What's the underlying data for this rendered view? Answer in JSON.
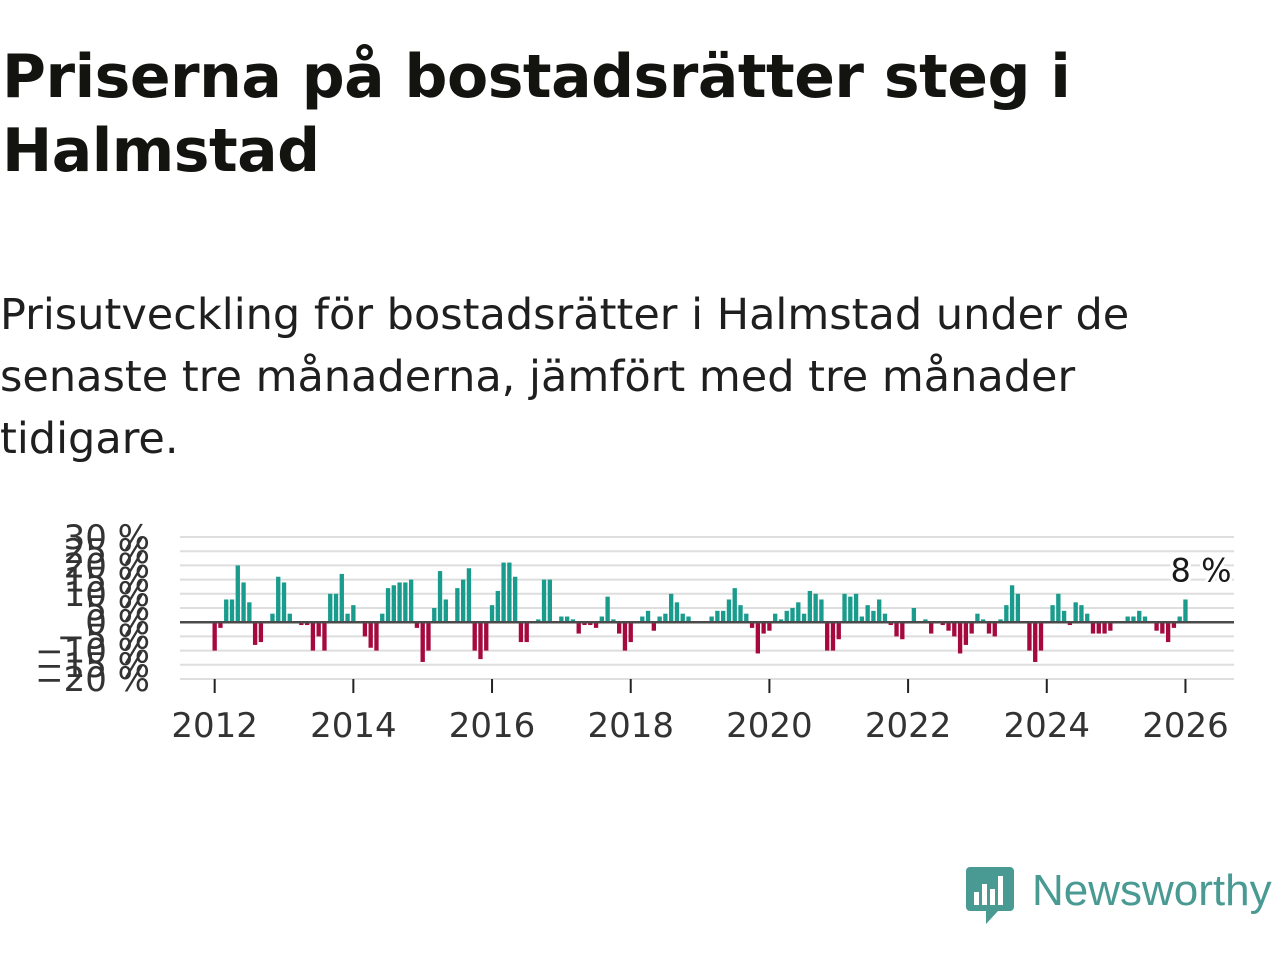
{
  "title": "Priserna på bostadsrätter steg i Halmstad",
  "subtitle": "Prisutveckling för bostadsrätter i Halmstad under de senaste tre månaderna, jämfört med tre månader tidigare.",
  "brand": {
    "name": "Newsworthy",
    "color": "#4a9a94",
    "icon": "bar-chart-speech-bubble-icon"
  },
  "colors": {
    "positive": "#199c8d",
    "negative": "#a5093d",
    "grid": "#dedede",
    "zero_line": "#4a4a4a",
    "text": "#333333"
  },
  "chart_data": {
    "type": "bar",
    "title": "Priserna på bostadsrätter steg i Halmstad",
    "xlabel": "",
    "ylabel": "",
    "ylim": [
      -20,
      30
    ],
    "y_ticks": [
      30,
      25,
      20,
      15,
      10,
      5,
      0,
      -5,
      -10,
      -15,
      -20
    ],
    "y_tick_labels": [
      "30 %",
      "25 %",
      "20 %",
      "15 %",
      "10 %",
      "5 %",
      "0 %",
      "−5 %",
      "−10 %",
      "−15 %",
      "−20 %"
    ],
    "x_range": [
      2011.5,
      2026.7
    ],
    "x_ticks": [
      2012,
      2014,
      2016,
      2018,
      2020,
      2022,
      2024,
      2026
    ],
    "x_tick_labels": [
      "2012",
      "2014",
      "2016",
      "2018",
      "2020",
      "2022",
      "2024",
      "2026"
    ],
    "start": "2012-01",
    "frequency": "monthly",
    "values": [
      -10,
      -2,
      8,
      8,
      20,
      14,
      7,
      -8,
      -7,
      0,
      3,
      16,
      14,
      3,
      0,
      -1,
      -1,
      -10,
      -5,
      -10,
      10,
      10,
      17,
      3,
      6,
      0,
      -5,
      -9,
      -10,
      3,
      12,
      13,
      14,
      14,
      15,
      -2,
      -14,
      -10,
      5,
      18,
      8,
      0,
      12,
      15,
      19,
      -10,
      -13,
      -10,
      6,
      11,
      21,
      21,
      16,
      -7,
      -7,
      0,
      1,
      15,
      15,
      0,
      2,
      2,
      1,
      -4,
      -1,
      -1,
      -2,
      2,
      9,
      1,
      -4,
      -10,
      -7,
      0,
      2,
      4,
      -3,
      2,
      3,
      10,
      7,
      3,
      2,
      0,
      0,
      0,
      2,
      4,
      4,
      8,
      12,
      6,
      3,
      -2,
      -11,
      -4,
      -3,
      3,
      1,
      4,
      5,
      7,
      3,
      11,
      10,
      8,
      -10,
      -10,
      -6,
      10,
      9,
      10,
      2,
      6,
      4,
      8,
      3,
      -1,
      -5,
      -6,
      0,
      5,
      0,
      1,
      -4,
      0,
      -1,
      -3,
      -5,
      -11,
      -8,
      -4,
      3,
      1,
      -4,
      -5,
      1,
      6,
      13,
      10,
      0,
      -10,
      -14,
      -10,
      0,
      6,
      10,
      4,
      -1,
      7,
      6,
      3,
      -4,
      -4,
      -4,
      -3,
      0,
      0,
      2,
      2,
      4,
      2,
      0,
      -3,
      -4,
      -7,
      -2,
      2,
      8
    ],
    "annotations": [
      {
        "label": "8 %",
        "x": "2026-03",
        "value": 8
      }
    ]
  }
}
